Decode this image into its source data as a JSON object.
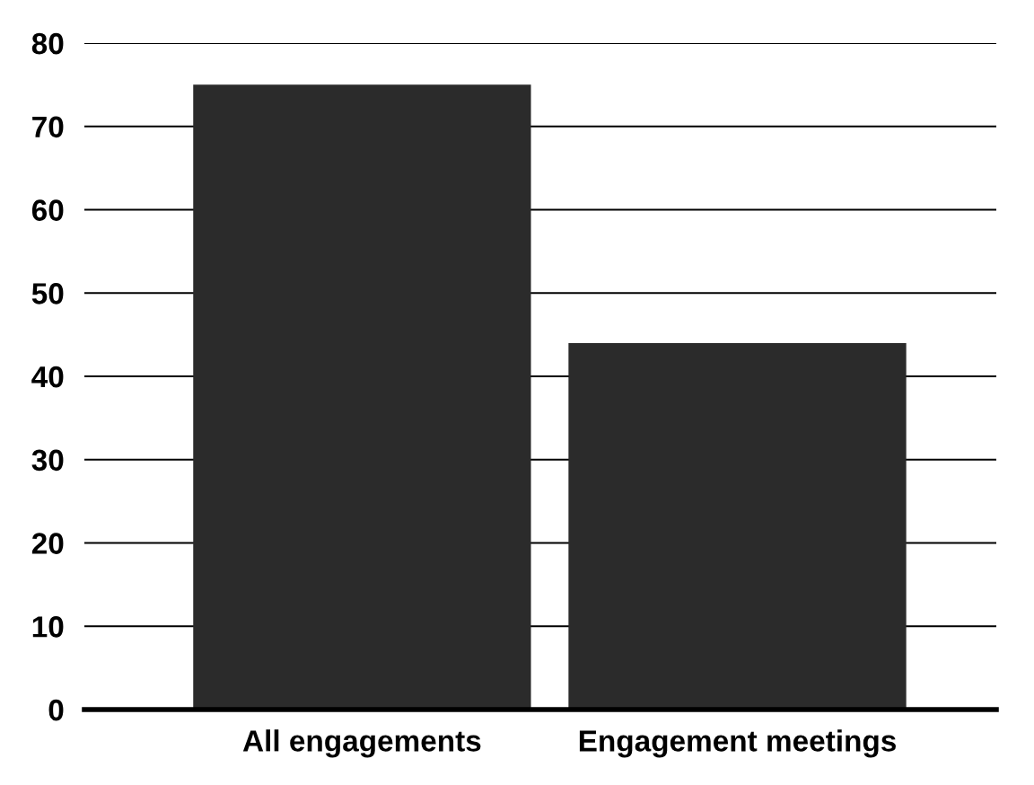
{
  "chart_data": {
    "type": "bar",
    "categories": [
      "All engagements",
      "Engagement meetings"
    ],
    "values": [
      75,
      44
    ],
    "color": "#2b2b2b",
    "ylim": [
      0,
      80
    ],
    "yticks": [
      0,
      10,
      20,
      30,
      40,
      50,
      60,
      70,
      80
    ],
    "grid": "y"
  }
}
